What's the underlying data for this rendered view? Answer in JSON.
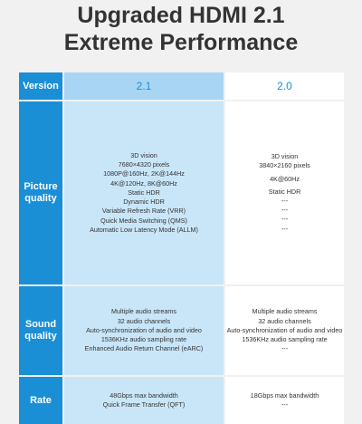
{
  "headline": {
    "line1": "Upgraded HDMI 2.1",
    "line2": "Extreme Performance"
  },
  "colors": {
    "label_bg": "#1a8fd6",
    "col21_bg": "#c9e6f9",
    "col21_head_bg": "#a9d5f4",
    "col20_bg": "#ffffff",
    "page_bg": "#f1f1f1"
  },
  "table": {
    "row_labels": {
      "version": "Version",
      "picture_line1": "Picture",
      "picture_line2": "quality",
      "sound_line1": "Sound",
      "sound_line2": "quality",
      "rate": "Rate"
    },
    "col21": {
      "header": "2.1",
      "picture": [
        "3D vision",
        "7680×4320 pixels",
        "1080P@160Hz, 2K@144Hz",
        "4K@120Hz, 8K@60Hz",
        "Static HDR",
        "Dynamic HDR",
        "Variable Refresh Rate (VRR)",
        "Quick Media Switching (QMS)",
        "Automatic Low Latency Mode (ALLM)"
      ],
      "sound": [
        "Multiple audio streams",
        "32 audio channels",
        "Auto-synchronization of audio and video",
        "1536KHz audio sampling rate",
        "Enhanced Audio Return Channel (eARC)"
      ],
      "rate": [
        "48Gbps max bandwidth",
        "Quick Frame Transfer (QFT)"
      ]
    },
    "col20": {
      "header": "2.0",
      "picture": [
        "3D vision",
        "3840×2160 pixels",
        "4K@60Hz",
        "Static HDR",
        "---",
        "---",
        "---",
        "---"
      ],
      "sound": [
        "Multiple audio streams",
        "32 audio channels",
        "Auto-synchronization of audio and video",
        "1536KHz audio sampling rate",
        "---"
      ],
      "rate": [
        "18Gbps max bandwidth",
        "---"
      ]
    }
  }
}
